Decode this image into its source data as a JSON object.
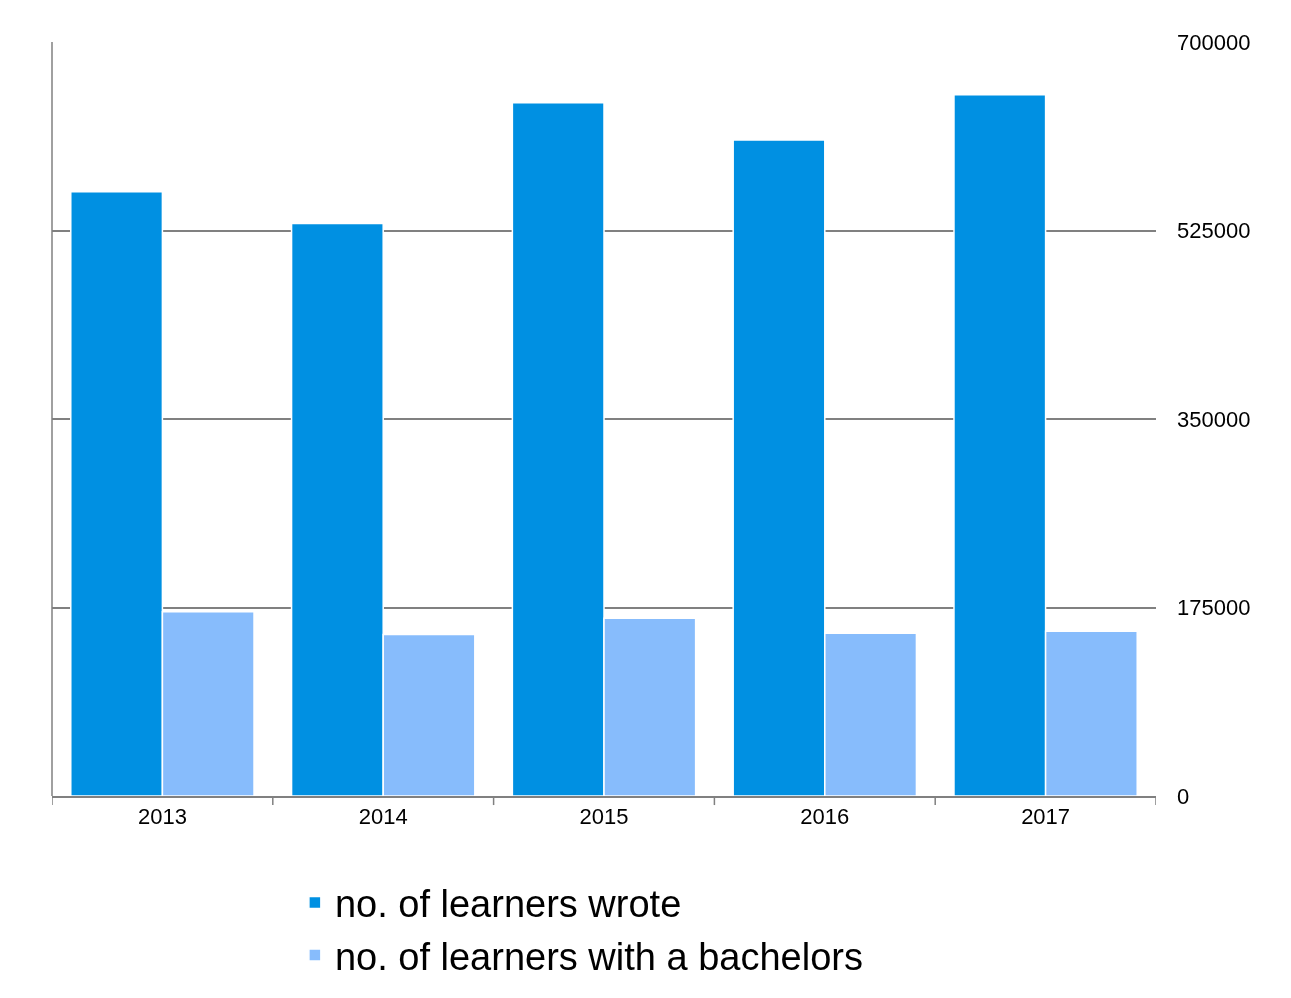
{
  "chart_data": {
    "type": "bar",
    "categories": [
      "2013",
      "2014",
      "2015",
      "2016",
      "2017"
    ],
    "series": [
      {
        "name": "no. of learners wrote",
        "color": "#0090e2",
        "values": [
          561000,
          531500,
          643500,
          609000,
          651000
        ]
      },
      {
        "name": "no. of learners with a bachelors",
        "color": "#87bcfc",
        "values": [
          171000,
          150000,
          165000,
          151000,
          153000
        ]
      }
    ],
    "ylim": [
      0,
      700000
    ],
    "yticks": [
      0,
      175000,
      350000,
      525000,
      700000
    ],
    "grid": "y",
    "legend": "bottom"
  }
}
